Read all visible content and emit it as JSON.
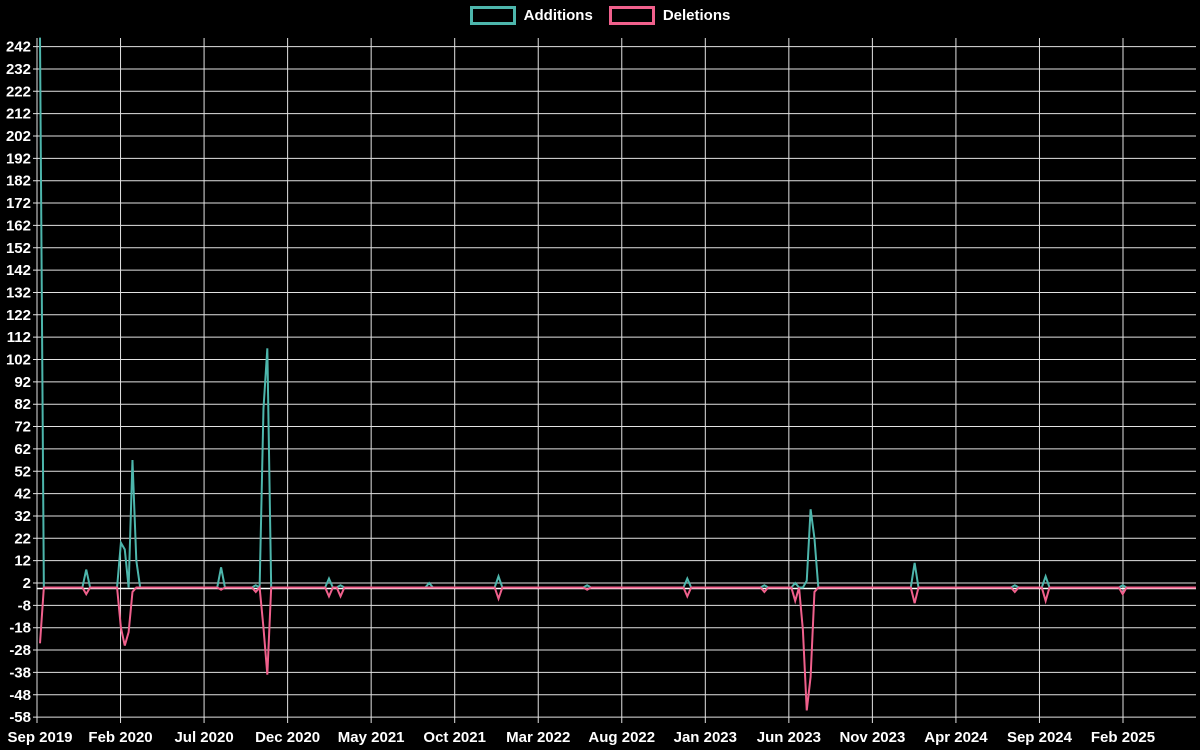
{
  "chart_data": {
    "type": "line",
    "title": "",
    "legend": [
      {
        "label": "Additions",
        "color": "#4db6ac"
      },
      {
        "label": "Deletions",
        "color": "#f0608c"
      }
    ],
    "legend_position": "top",
    "grid": true,
    "background": "#000000",
    "text_color": "#ffffff",
    "grid_color": "#e2e2e2",
    "zero_axis_color": "#ffffff",
    "x_tick_labels": [
      "Sep 2019",
      "Feb 2020",
      "Jul 2020",
      "Dec 2020",
      "May 2021",
      "Oct 2021",
      "Mar 2022",
      "Aug 2022",
      "Jan 2023",
      "Jun 2023",
      "Nov 2023",
      "Apr 2024",
      "Sep 2024",
      "Feb 2025"
    ],
    "y_ticks": [
      242,
      232,
      222,
      212,
      202,
      192,
      182,
      172,
      162,
      152,
      142,
      132,
      122,
      112,
      102,
      92,
      82,
      72,
      62,
      52,
      42,
      32,
      22,
      12,
      2,
      -8,
      -18,
      -28,
      -38,
      -48,
      -58
    ],
    "ylim": [
      -58,
      246
    ],
    "weeks_total": 300,
    "series": [
      {
        "name": "Additions",
        "color": "#4db6ac",
        "baseline": 0,
        "points_sparse": [
          [
            0,
            246
          ],
          [
            12,
            8
          ],
          [
            21,
            20
          ],
          [
            22,
            17
          ],
          [
            24,
            57
          ],
          [
            25,
            12
          ],
          [
            47,
            9
          ],
          [
            56,
            1
          ],
          [
            58,
            80
          ],
          [
            59,
            107
          ],
          [
            75,
            4
          ],
          [
            78,
            1
          ],
          [
            101,
            2
          ],
          [
            119,
            5
          ],
          [
            142,
            1
          ],
          [
            168,
            4
          ],
          [
            188,
            1
          ],
          [
            196,
            2
          ],
          [
            199,
            3
          ],
          [
            200,
            35
          ],
          [
            201,
            22
          ],
          [
            227,
            11
          ],
          [
            253,
            1
          ],
          [
            261,
            5
          ],
          [
            281,
            1
          ]
        ]
      },
      {
        "name": "Deletions",
        "color": "#f0608c",
        "baseline": 0,
        "points_sparse": [
          [
            0,
            -25
          ],
          [
            12,
            -3
          ],
          [
            21,
            -18
          ],
          [
            22,
            -26
          ],
          [
            23,
            -20
          ],
          [
            24,
            -2
          ],
          [
            47,
            -1
          ],
          [
            56,
            -2
          ],
          [
            58,
            -18
          ],
          [
            59,
            -39
          ],
          [
            75,
            -4
          ],
          [
            78,
            -4
          ],
          [
            119,
            -5
          ],
          [
            142,
            -1
          ],
          [
            168,
            -4
          ],
          [
            188,
            -2
          ],
          [
            196,
            -6
          ],
          [
            198,
            -19
          ],
          [
            199,
            -55
          ],
          [
            200,
            -40
          ],
          [
            201,
            -2
          ],
          [
            227,
            -7
          ],
          [
            253,
            -2
          ],
          [
            261,
            -6
          ],
          [
            281,
            -3
          ]
        ]
      }
    ]
  }
}
